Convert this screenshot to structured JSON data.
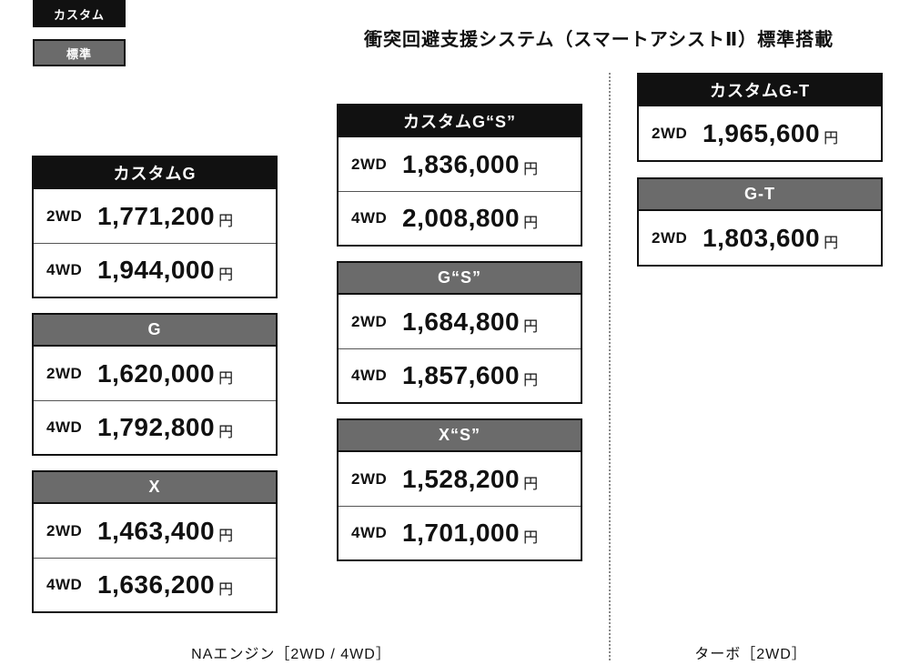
{
  "legend": {
    "custom_label": "カスタム",
    "standard_label": "標準"
  },
  "title": "衝突回避支援システム（スマートアシストⅡ）標準搭載",
  "yen": "円",
  "cards": {
    "custom_g": {
      "name": "カスタムG",
      "rows": [
        {
          "drive": "2WD",
          "price": "1,771,200"
        },
        {
          "drive": "4WD",
          "price": "1,944,000"
        }
      ]
    },
    "g": {
      "name": "G",
      "rows": [
        {
          "drive": "2WD",
          "price": "1,620,000"
        },
        {
          "drive": "4WD",
          "price": "1,792,800"
        }
      ]
    },
    "x": {
      "name": "X",
      "rows": [
        {
          "drive": "2WD",
          "price": "1,463,400"
        },
        {
          "drive": "4WD",
          "price": "1,636,200"
        }
      ]
    },
    "custom_gs": {
      "name": "カスタムG“S”",
      "rows": [
        {
          "drive": "2WD",
          "price": "1,836,000"
        },
        {
          "drive": "4WD",
          "price": "2,008,800"
        }
      ]
    },
    "gs": {
      "name": "G“S”",
      "rows": [
        {
          "drive": "2WD",
          "price": "1,684,800"
        },
        {
          "drive": "4WD",
          "price": "1,857,600"
        }
      ]
    },
    "xs": {
      "name": "X“S”",
      "rows": [
        {
          "drive": "2WD",
          "price": "1,528,200"
        },
        {
          "drive": "4WD",
          "price": "1,701,000"
        }
      ]
    },
    "custom_gt": {
      "name": "カスタムG-T",
      "rows": [
        {
          "drive": "2WD",
          "price": "1,965,600"
        }
      ]
    },
    "gt": {
      "name": "G-T",
      "rows": [
        {
          "drive": "2WD",
          "price": "1,803,600"
        }
      ]
    }
  },
  "sections": {
    "na": "NAエンジン［2WD / 4WD］",
    "turbo": "ターボ［2WD］"
  }
}
